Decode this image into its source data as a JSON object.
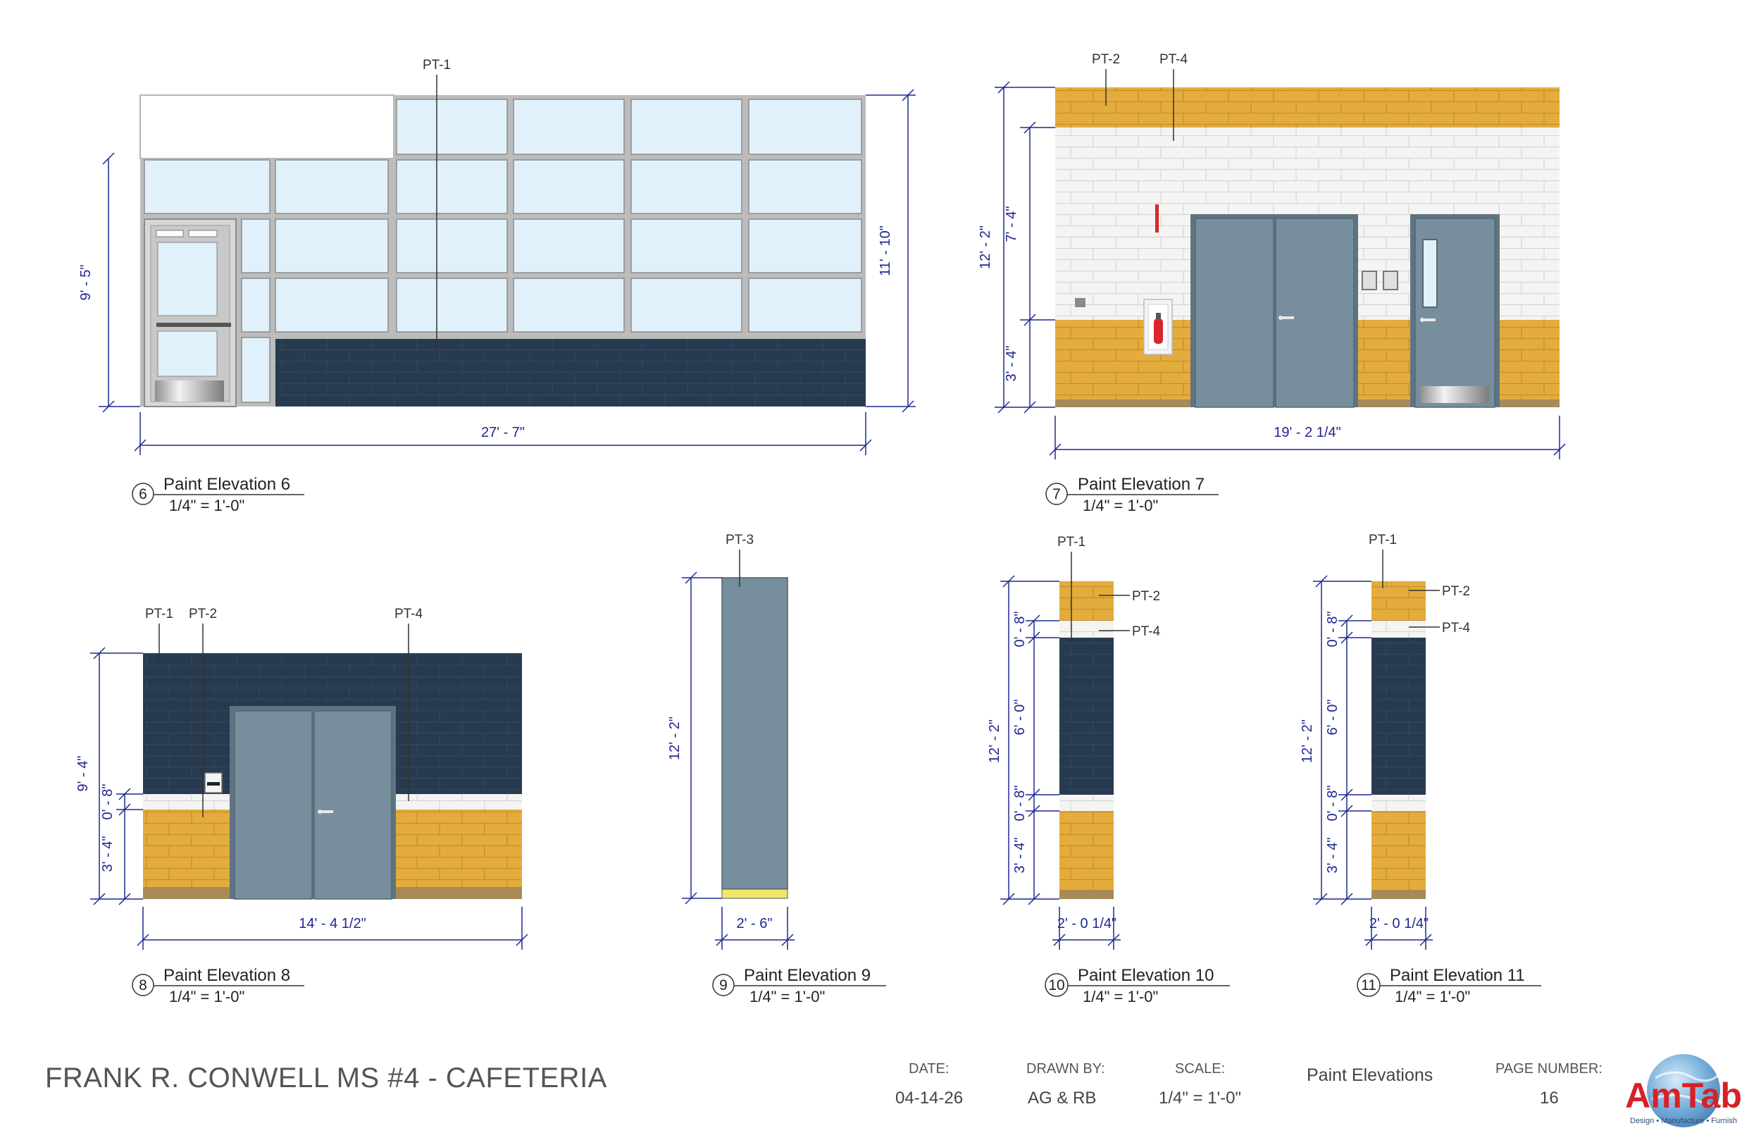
{
  "project_title": "FRANK R. CONWELL MS #4 - CAFETERIA",
  "title_block": {
    "date_label": "DATE:",
    "date": "04-14-26",
    "drawn_by_label": "DRAWN BY:",
    "drawn_by": "AG & RB",
    "scale_label": "SCALE:",
    "scale": "1/4\" = 1'-0\"",
    "sheet_title": "Paint Elevations",
    "page_number_label": "PAGE NUMBER:",
    "page_number": "16"
  },
  "logo": {
    "text": "AmTab",
    "tagline": "Design • Manufacture • Furnish"
  },
  "colors": {
    "navy": "#273a4f",
    "gold": "#e3ac3c",
    "slate": "#778e9c",
    "white_cmu": "#f4f4f2",
    "glass": "#e1f1fb",
    "dim_blue": "#1e2890",
    "base": "#a78a58",
    "yellow_base": "#f1e667"
  },
  "elevations": [
    {
      "number": "6",
      "title": "Paint Elevation 6",
      "scale": "1/4\" = 1'-0\"",
      "tags": [
        "PT-1"
      ],
      "dims": {
        "overall_width": "27' - 7\"",
        "left_height": "9' - 5\"",
        "right_height": "11' - 10\""
      }
    },
    {
      "number": "7",
      "title": "Paint Elevation 7",
      "scale": "1/4\" = 1'-0\"",
      "tags": [
        "PT-2",
        "PT-4"
      ],
      "dims": {
        "overall_width": "19' - 2 1/4\"",
        "total_height": "12' - 2\"",
        "upper": "7' - 4\"",
        "lower": "3' - 4\""
      }
    },
    {
      "number": "8",
      "title": "Paint Elevation 8",
      "scale": "1/4\" = 1'-0\"",
      "tags": [
        "PT-1",
        "PT-2",
        "PT-4"
      ],
      "dims": {
        "overall_width": "14' - 4 1/2\"",
        "total_height": "9' - 4\"",
        "band": "0' - 8\"",
        "lower": "3' - 4\""
      }
    },
    {
      "number": "9",
      "title": "Paint Elevation 9",
      "scale": "1/4\" = 1'-0\"",
      "tags": [
        "PT-3"
      ],
      "dims": {
        "overall_width": "2' - 6\"",
        "total_height": "12' - 2\""
      }
    },
    {
      "number": "10",
      "title": "Paint Elevation 10",
      "scale": "1/4\" = 1'-0\"",
      "tags": [
        "PT-1",
        "PT-2",
        "PT-4"
      ],
      "dims": {
        "overall_width": "2' - 0 1/4\"",
        "total_height": "12' - 2\"",
        "top_band": "0' - 8\"",
        "middle": "6' - 0\"",
        "band": "0' - 8\"",
        "lower": "3' - 4\""
      }
    },
    {
      "number": "11",
      "title": "Paint Elevation 11",
      "scale": "1/4\" = 1'-0\"",
      "tags": [
        "PT-1",
        "PT-2",
        "PT-4"
      ],
      "dims": {
        "overall_width": "2' - 0 1/4\"",
        "total_height": "12' - 2\"",
        "top_band": "0' - 8\"",
        "middle": "6' - 0\"",
        "band": "0' - 8\"",
        "lower": "3' - 4\""
      }
    }
  ]
}
